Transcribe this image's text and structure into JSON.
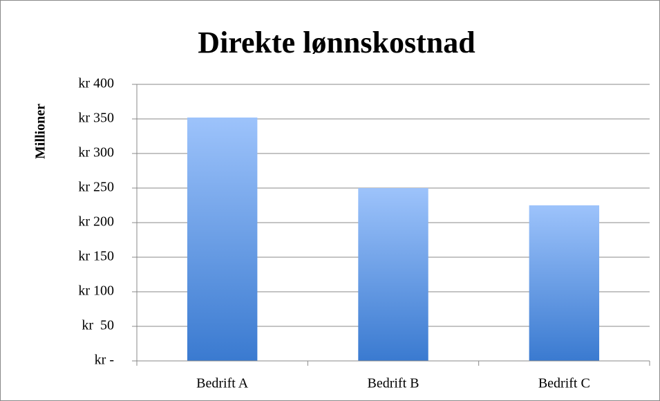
{
  "chart_data": {
    "type": "bar",
    "title": "Direkte lønnskostnad",
    "ylabel": "Millioner",
    "categories": [
      "Bedrift A",
      "Bedrift B",
      "Bedrift C"
    ],
    "values": [
      352,
      250,
      225
    ],
    "gradient": [
      "#9dc3fb",
      "#3a7ad0"
    ],
    "ylim": [
      0,
      400
    ],
    "yticks": [
      {
        "value": 0,
        "label": "kr -"
      },
      {
        "value": 50,
        "label": "kr  50"
      },
      {
        "value": 100,
        "label": "kr 100"
      },
      {
        "value": 150,
        "label": "kr 150"
      },
      {
        "value": 200,
        "label": "kr 200"
      },
      {
        "value": 250,
        "label": "kr 250"
      },
      {
        "value": 300,
        "label": "kr 300"
      },
      {
        "value": 350,
        "label": "kr 350"
      },
      {
        "value": 400,
        "label": "kr 400"
      }
    ],
    "grid": true
  }
}
